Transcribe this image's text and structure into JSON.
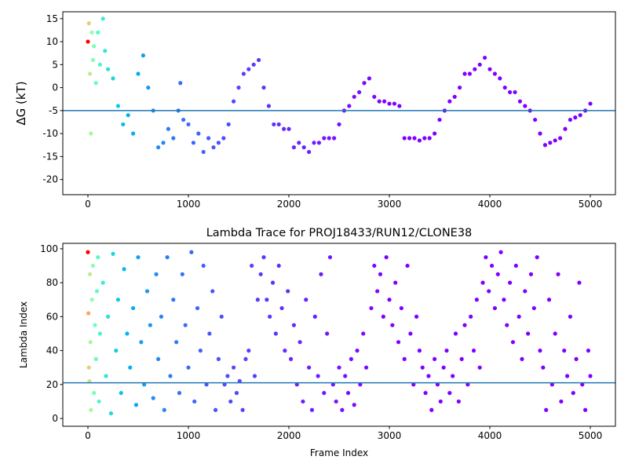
{
  "chart_data": [
    {
      "type": "scatter",
      "ylabel": "ΔG (kT)",
      "colormap": "rainbow_r",
      "color_scale": "log",
      "clim": [
        1,
        3000
      ],
      "xlim": [
        -250,
        5250
      ],
      "ylim": [
        -23.3,
        16.5
      ],
      "xticks": [
        0,
        1000,
        2000,
        3000,
        4000,
        5000
      ],
      "yticks": [
        -20,
        -15,
        -10,
        -5,
        0,
        5,
        10,
        15
      ],
      "hline": -5,
      "hline_color": "#1f77b4",
      "x": [
        0,
        10,
        20,
        30,
        40,
        50,
        60,
        80,
        100,
        120,
        150,
        170,
        200,
        250,
        300,
        350,
        400,
        450,
        500,
        550,
        600,
        650,
        700,
        750,
        800,
        850,
        900,
        920,
        950,
        1000,
        1050,
        1100,
        1150,
        1200,
        1250,
        1300,
        1350,
        1400,
        1450,
        1500,
        1550,
        1600,
        1650,
        1700,
        1750,
        1800,
        1850,
        1900,
        1950,
        2000,
        2050,
        2100,
        2150,
        2200,
        2250,
        2300,
        2350,
        2400,
        2450,
        2500,
        2550,
        2600,
        2650,
        2700,
        2750,
        2800,
        2850,
        2900,
        2950,
        3000,
        3050,
        3100,
        3150,
        3200,
        3250,
        3300,
        3350,
        3400,
        3450,
        3500,
        3550,
        3600,
        3650,
        3700,
        3750,
        3800,
        3850,
        3900,
        3950,
        4000,
        4050,
        4100,
        4150,
        4200,
        4250,
        4300,
        4350,
        4400,
        4450,
        4500,
        4550,
        4600,
        4650,
        4700,
        4750,
        4800,
        4850,
        4900,
        4950,
        5000
      ],
      "values": [
        10,
        14,
        3,
        -10,
        12,
        6,
        9,
        1,
        12,
        5,
        15,
        8,
        4,
        2,
        -4,
        -8,
        -6,
        -10,
        3,
        7,
        0,
        -5,
        -13,
        -12,
        -9,
        -11,
        -5,
        1,
        -7,
        -8,
        -12,
        -10,
        -14,
        -11,
        -13,
        -12,
        -11,
        -8,
        -3,
        0,
        3,
        4,
        5,
        6,
        0,
        -4,
        -8,
        -8,
        -9,
        -9,
        -13,
        -12,
        -13,
        -14,
        -12,
        -12,
        -11,
        -11,
        -11,
        -8,
        -5,
        -4,
        -2,
        -1,
        1,
        2,
        -2,
        -3,
        -3,
        -3.5,
        -3.5,
        -4,
        -11,
        -11,
        -11,
        -11.5,
        -11,
        -11,
        -10,
        -7,
        -5,
        -3,
        -2,
        0,
        3,
        3,
        4,
        5,
        6.5,
        4,
        3,
        2,
        0,
        -1,
        -1,
        -3,
        -4,
        -5,
        -7,
        -10,
        -12.5,
        -12,
        -11.5,
        -11,
        -9,
        -7,
        -6.5,
        -6,
        -5,
        -3.5
      ]
    },
    {
      "type": "scatter",
      "title": "Lambda Trace for PROJ18433/RUN12/CLONE38",
      "xlabel": "Frame Index",
      "ylabel": "Lambda Index",
      "colormap": "rainbow_r",
      "color_scale": "log",
      "clim": [
        1,
        3000
      ],
      "xlim": [
        -250,
        5250
      ],
      "ylim": [
        -4.6,
        103.2
      ],
      "xticks": [
        0,
        1000,
        2000,
        3000,
        4000,
        5000
      ],
      "yticks": [
        0,
        20,
        40,
        60,
        80,
        100
      ],
      "hline": 21,
      "hline_color": "#1f77b4",
      "x": [
        0,
        5,
        10,
        15,
        20,
        25,
        30,
        40,
        50,
        60,
        70,
        80,
        90,
        100,
        110,
        120,
        150,
        180,
        200,
        230,
        250,
        280,
        300,
        330,
        360,
        390,
        420,
        450,
        480,
        500,
        530,
        560,
        590,
        620,
        650,
        680,
        700,
        730,
        760,
        790,
        820,
        850,
        880,
        910,
        940,
        970,
        1000,
        1030,
        1060,
        1090,
        1120,
        1150,
        1180,
        1210,
        1240,
        1270,
        1300,
        1330,
        1360,
        1390,
        1420,
        1450,
        1480,
        1510,
        1540,
        1570,
        1600,
        1630,
        1660,
        1690,
        1720,
        1750,
        1780,
        1810,
        1840,
        1870,
        1900,
        1930,
        1960,
        1990,
        2020,
        2050,
        2080,
        2110,
        2140,
        2170,
        2200,
        2230,
        2260,
        2290,
        2320,
        2350,
        2380,
        2410,
        2440,
        2470,
        2500,
        2530,
        2560,
        2590,
        2620,
        2650,
        2680,
        2710,
        2740,
        2770,
        2820,
        2850,
        2880,
        2910,
        2940,
        2970,
        3000,
        3030,
        3060,
        3090,
        3120,
        3150,
        3180,
        3210,
        3240,
        3270,
        3300,
        3330,
        3360,
        3390,
        3420,
        3450,
        3480,
        3510,
        3540,
        3570,
        3600,
        3630,
        3660,
        3690,
        3720,
        3750,
        3780,
        3810,
        3840,
        3870,
        3900,
        3930,
        3960,
        3990,
        4020,
        4050,
        4080,
        4110,
        4140,
        4170,
        4200,
        4230,
        4260,
        4290,
        4320,
        4350,
        4380,
        4410,
        4440,
        4470,
        4500,
        4530,
        4560,
        4590,
        4620,
        4650,
        4680,
        4710,
        4740,
        4770,
        4800,
        4830,
        4860,
        4890,
        4920,
        4950,
        4980,
        5000
      ],
      "values": [
        98,
        62,
        30,
        22,
        85,
        45,
        5,
        70,
        90,
        15,
        55,
        35,
        75,
        95,
        10,
        50,
        80,
        25,
        60,
        3,
        97,
        40,
        70,
        15,
        88,
        50,
        30,
        65,
        8,
        95,
        45,
        20,
        75,
        55,
        12,
        85,
        35,
        60,
        5,
        95,
        25,
        70,
        45,
        15,
        85,
        55,
        30,
        98,
        10,
        65,
        40,
        90,
        20,
        50,
        75,
        5,
        35,
        60,
        20,
        25,
        10,
        30,
        15,
        22,
        5,
        35,
        40,
        90,
        25,
        70,
        85,
        95,
        70,
        60,
        80,
        50,
        90,
        65,
        40,
        75,
        35,
        55,
        20,
        45,
        10,
        70,
        30,
        5,
        60,
        25,
        85,
        15,
        50,
        95,
        20,
        10,
        30,
        5,
        25,
        15,
        35,
        8,
        40,
        20,
        50,
        30,
        65,
        90,
        75,
        85,
        60,
        95,
        70,
        55,
        80,
        45,
        65,
        35,
        90,
        50,
        20,
        60,
        40,
        30,
        15,
        25,
        5,
        35,
        20,
        10,
        30,
        40,
        15,
        25,
        50,
        10,
        35,
        55,
        20,
        60,
        40,
        70,
        30,
        80,
        95,
        75,
        90,
        65,
        85,
        98,
        70,
        55,
        80,
        45,
        90,
        60,
        35,
        75,
        50,
        85,
        65,
        95,
        40,
        30,
        5,
        70,
        20,
        50,
        85,
        10,
        40,
        25,
        60,
        15,
        35,
        80,
        20,
        5,
        40,
        25
      ]
    }
  ]
}
